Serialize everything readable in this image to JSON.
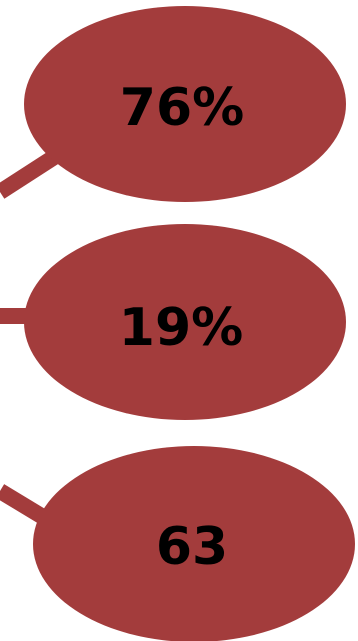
{
  "colors": {
    "node_fill": "#a33c3c",
    "connector": "#a33c3c",
    "label": "#000000",
    "background": "#ffffff"
  },
  "nodes": [
    {
      "label": "76%"
    },
    {
      "label": "19%"
    },
    {
      "label": "63"
    }
  ]
}
